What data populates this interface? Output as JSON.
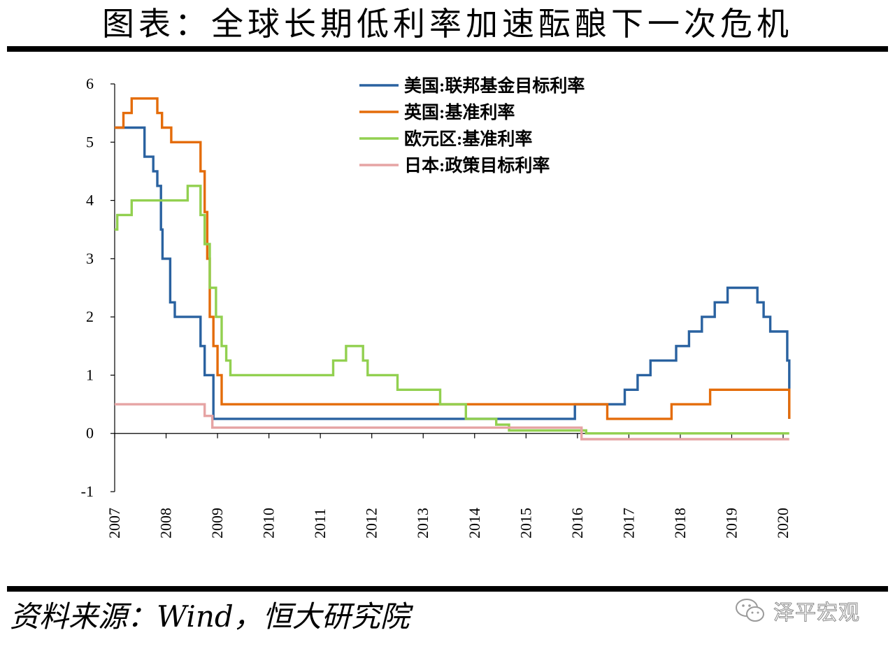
{
  "title": "图表：全球长期低利率加速酝酿下一次危机",
  "source": "资料来源：Wind，恒大研究院",
  "watermark": "泽平宏观",
  "chart_data": {
    "type": "line",
    "step": true,
    "ylim": [
      -1,
      6
    ],
    "yticks": [
      -1,
      0,
      1,
      2,
      3,
      4,
      5,
      6
    ],
    "xlim": [
      2007,
      2020.1
    ],
    "xticks": [
      2007,
      2008,
      2009,
      2010,
      2011,
      2012,
      2013,
      2014,
      2015,
      2016,
      2017,
      2018,
      2019,
      2020
    ],
    "legend_position": "top-center",
    "series": [
      {
        "name": "美国:联邦基金目标利率",
        "color": "#2a62a0",
        "points": [
          [
            2007.0,
            5.25
          ],
          [
            2007.58,
            4.75
          ],
          [
            2007.75,
            4.5
          ],
          [
            2007.83,
            4.25
          ],
          [
            2007.9,
            3.5
          ],
          [
            2007.93,
            3.0
          ],
          [
            2008.08,
            2.25
          ],
          [
            2008.17,
            2.0
          ],
          [
            2008.67,
            1.5
          ],
          [
            2008.75,
            1.0
          ],
          [
            2008.92,
            0.25
          ],
          [
            2015.83,
            0.25
          ],
          [
            2015.95,
            0.5
          ],
          [
            2016.92,
            0.75
          ],
          [
            2017.17,
            1.0
          ],
          [
            2017.42,
            1.25
          ],
          [
            2017.92,
            1.5
          ],
          [
            2018.17,
            1.75
          ],
          [
            2018.42,
            2.0
          ],
          [
            2018.67,
            2.25
          ],
          [
            2018.92,
            2.5
          ],
          [
            2019.5,
            2.25
          ],
          [
            2019.62,
            2.0
          ],
          [
            2019.75,
            1.75
          ],
          [
            2020.08,
            1.25
          ],
          [
            2020.12,
            0.25
          ]
        ]
      },
      {
        "name": "英国:基准利率",
        "color": "#e46c0a",
        "points": [
          [
            2007.0,
            5.25
          ],
          [
            2007.17,
            5.5
          ],
          [
            2007.33,
            5.75
          ],
          [
            2007.83,
            5.5
          ],
          [
            2007.92,
            5.25
          ],
          [
            2008.1,
            5.0
          ],
          [
            2008.67,
            4.5
          ],
          [
            2008.75,
            3.8
          ],
          [
            2008.8,
            3.0
          ],
          [
            2008.85,
            2.0
          ],
          [
            2008.92,
            1.5
          ],
          [
            2009.0,
            1.0
          ],
          [
            2009.08,
            0.5
          ],
          [
            2016.58,
            0.25
          ],
          [
            2017.83,
            0.5
          ],
          [
            2018.58,
            0.75
          ],
          [
            2020.12,
            0.25
          ]
        ]
      },
      {
        "name": "欧元区:基准利率",
        "color": "#92d050",
        "points": [
          [
            2007.0,
            3.5
          ],
          [
            2007.05,
            3.75
          ],
          [
            2007.33,
            4.0
          ],
          [
            2008.42,
            4.25
          ],
          [
            2008.67,
            3.75
          ],
          [
            2008.75,
            3.25
          ],
          [
            2008.85,
            2.5
          ],
          [
            2008.97,
            2.0
          ],
          [
            2009.08,
            1.5
          ],
          [
            2009.17,
            1.25
          ],
          [
            2009.25,
            1.0
          ],
          [
            2011.25,
            1.25
          ],
          [
            2011.5,
            1.5
          ],
          [
            2011.83,
            1.25
          ],
          [
            2011.92,
            1.0
          ],
          [
            2012.5,
            0.75
          ],
          [
            2013.33,
            0.5
          ],
          [
            2013.83,
            0.25
          ],
          [
            2014.42,
            0.15
          ],
          [
            2014.67,
            0.05
          ],
          [
            2016.17,
            0.0
          ],
          [
            2020.12,
            0.0
          ]
        ]
      },
      {
        "name": "日本:政策目标利率",
        "color": "#e6a4a4",
        "points": [
          [
            2007.0,
            0.5
          ],
          [
            2008.75,
            0.3
          ],
          [
            2008.9,
            0.1
          ],
          [
            2016.08,
            -0.1
          ],
          [
            2020.12,
            -0.1
          ]
        ]
      }
    ]
  }
}
